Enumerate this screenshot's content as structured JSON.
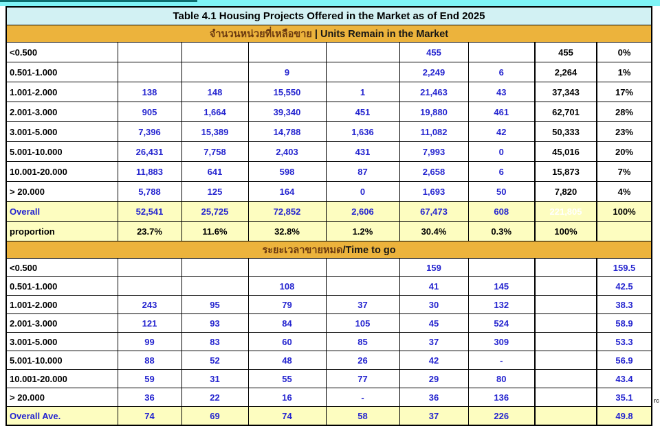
{
  "table": {
    "title": "Table 4.1 Housing Projects Offered in the Market as of End 2025",
    "section1": {
      "band_thai": "จำนวนหน่วยที่เหลือขาย",
      "band_en": "| Units Remain in the Market",
      "rows": [
        {
          "label": "<0.500",
          "cells": [
            "",
            "",
            "",
            "",
            "455",
            ""
          ],
          "total": "455",
          "pct": "0%"
        },
        {
          "label": "0.501-1.000",
          "cells": [
            "",
            "",
            "9",
            "",
            "2,249",
            "6"
          ],
          "total": "2,264",
          "pct": "1%"
        },
        {
          "label": "1.001-2.000",
          "cells": [
            "138",
            "148",
            "15,550",
            "1",
            "21,463",
            "43"
          ],
          "total": "37,343",
          "pct": "17%"
        },
        {
          "label": "2.001-3.000",
          "cells": [
            "905",
            "1,664",
            "39,340",
            "451",
            "19,880",
            "461"
          ],
          "total": "62,701",
          "pct": "28%"
        },
        {
          "label": "3.001-5.000",
          "cells": [
            "7,396",
            "15,389",
            "14,788",
            "1,636",
            "11,082",
            "42"
          ],
          "total": "50,333",
          "pct": "23%"
        },
        {
          "label": "5.001-10.000",
          "cells": [
            "26,431",
            "7,758",
            "2,403",
            "431",
            "7,993",
            "0"
          ],
          "total": "45,016",
          "pct": "20%"
        },
        {
          "label": "10.001-20.000",
          "cells": [
            "11,883",
            "641",
            "598",
            "87",
            "2,658",
            "6"
          ],
          "total": "15,873",
          "pct": "7%"
        },
        {
          "label": "> 20.000",
          "cells": [
            "5,788",
            "125",
            "164",
            "0",
            "1,693",
            "50"
          ],
          "total": "7,820",
          "pct": "4%"
        }
      ],
      "overall": {
        "label": "Overall",
        "cells": [
          "52,541",
          "25,725",
          "72,852",
          "2,606",
          "67,473",
          "608"
        ],
        "total": "221,805",
        "pct": "100%"
      },
      "proportion": {
        "label": "proportion",
        "cells": [
          "23.7%",
          "11.6%",
          "32.8%",
          "1.2%",
          "30.4%",
          "0.3%"
        ],
        "total": "100%",
        "pct": ""
      }
    },
    "section2": {
      "band_thai": "ระยะเวลาขายหมด",
      "band_en": "/Time to go",
      "rows": [
        {
          "label": "<0.500",
          "cells": [
            "",
            "",
            "",
            "",
            "159",
            ""
          ],
          "total": "",
          "last": "159.5"
        },
        {
          "label": "0.501-1.000",
          "cells": [
            "",
            "",
            "108",
            "",
            "41",
            "145"
          ],
          "total": "",
          "last": "42.5"
        },
        {
          "label": "1.001-2.000",
          "cells": [
            "243",
            "95",
            "79",
            "37",
            "30",
            "132"
          ],
          "total": "",
          "last": "38.3"
        },
        {
          "label": "2.001-3.000",
          "cells": [
            "121",
            "93",
            "84",
            "105",
            "45",
            "524"
          ],
          "total": "",
          "last": "58.9"
        },
        {
          "label": "3.001-5.000",
          "cells": [
            "99",
            "83",
            "60",
            "85",
            "37",
            "309"
          ],
          "total": "",
          "last": "53.3"
        },
        {
          "label": "5.001-10.000",
          "cells": [
            "88",
            "52",
            "48",
            "26",
            "42",
            "-"
          ],
          "total": "",
          "last": "56.9"
        },
        {
          "label": "10.001-20.000",
          "cells": [
            "59",
            "31",
            "55",
            "77",
            "29",
            "80"
          ],
          "total": "",
          "last": "43.4"
        },
        {
          "label": "> 20.000",
          "cells": [
            "36",
            "22",
            "16",
            "-",
            "36",
            "136"
          ],
          "total": "",
          "last": "35.1"
        }
      ],
      "overall": {
        "label": "Overall Ave.",
        "cells": [
          "74",
          "69",
          "74",
          "58",
          "37",
          "226"
        ],
        "total": "",
        "last": "49.8"
      }
    }
  },
  "watermark": "rc",
  "colors": {
    "gold_band": "#ecb33c",
    "title_cyan": "#d2f1f3",
    "top_strip_cyan": "#7ef4f6",
    "top_strip_teal": "#0c6e6e",
    "highlight_yellow": "#fdfdc0",
    "grand_total_green": "#2c7d31",
    "value_blue": "#2424cf",
    "band_thai_text": "#6b3a10"
  }
}
